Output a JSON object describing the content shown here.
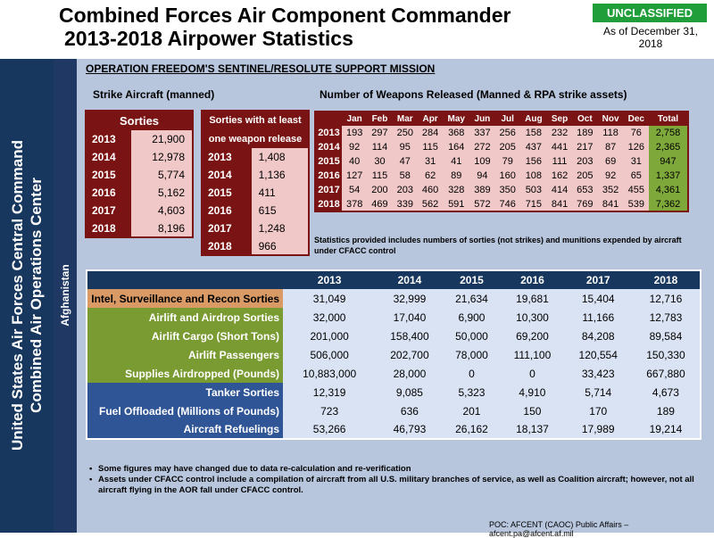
{
  "header": {
    "title_line1": "Combined Forces Air Component Commander",
    "title_line2": "2013-2018 Airpower Statistics",
    "classification": "UNCLASSIFIED",
    "as_of": "As of December 31, 2018"
  },
  "sidebar": {
    "org_line1": "United States Air Forces Central Command",
    "org_line2": "Combined Air Operations Center",
    "country": "Afghanistan"
  },
  "mission": "OPERATION FREEDOM'S SENTINEL/RESOLUTE SUPPORT MISSION",
  "strike": {
    "heading": "Strike Aircraft (manned)",
    "sorties_header": "Sorties",
    "release_header_1": "Sorties with at least",
    "release_header_2": "one weapon release",
    "rows": [
      {
        "year": "2013",
        "sorties": "21,900",
        "release": "1,408"
      },
      {
        "year": "2014",
        "sorties": "12,978",
        "release": "1,136"
      },
      {
        "year": "2015",
        "sorties": "5,774",
        "release": "411"
      },
      {
        "year": "2016",
        "sorties": "5,162",
        "release": "615"
      },
      {
        "year": "2017",
        "sorties": "4,603",
        "release": "1,248"
      },
      {
        "year": "2018",
        "sorties": "8,196",
        "release": "966"
      }
    ]
  },
  "weapons": {
    "heading": "Number of Weapons Released (Manned & RPA strike assets)",
    "months": [
      "Jan",
      "Feb",
      "Mar",
      "Apr",
      "May",
      "Jun",
      "Jul",
      "Aug",
      "Sep",
      "Oct",
      "Nov",
      "Dec",
      "Total"
    ],
    "rows": [
      {
        "year": "2013",
        "vals": [
          "193",
          "297",
          "250",
          "284",
          "368",
          "337",
          "256",
          "158",
          "232",
          "189",
          "118",
          "76",
          "2,758"
        ]
      },
      {
        "year": "2014",
        "vals": [
          "92",
          "114",
          "95",
          "115",
          "164",
          "272",
          "205",
          "437",
          "441",
          "217",
          "87",
          "126",
          "2,365"
        ]
      },
      {
        "year": "2015",
        "vals": [
          "40",
          "30",
          "47",
          "31",
          "41",
          "109",
          "79",
          "156",
          "111",
          "203",
          "69",
          "31",
          "947"
        ]
      },
      {
        "year": "2016",
        "vals": [
          "127",
          "115",
          "58",
          "62",
          "89",
          "94",
          "160",
          "108",
          "162",
          "205",
          "92",
          "65",
          "1,337"
        ]
      },
      {
        "year": "2017",
        "vals": [
          "54",
          "200",
          "203",
          "460",
          "328",
          "389",
          "350",
          "503",
          "414",
          "653",
          "352",
          "455",
          "4,361"
        ]
      },
      {
        "year": "2018",
        "vals": [
          "378",
          "469",
          "339",
          "562",
          "591",
          "572",
          "746",
          "715",
          "841",
          "769",
          "841",
          "539",
          "7,362"
        ]
      }
    ],
    "note": "Statistics provided includes numbers of sorties (not strikes) and munitions expended by aircraft under CFACC control"
  },
  "summary": {
    "years": [
      "2013",
      "2014",
      "2015",
      "2016",
      "2017",
      "2018"
    ],
    "rows": [
      {
        "label": "Intel, Surveillance and Recon Sorties",
        "vals": [
          "31,049",
          "32,999",
          "21,634",
          "19,681",
          "15,404",
          "12,716"
        ]
      },
      {
        "label": "Airlift and Airdrop Sorties",
        "vals": [
          "32,000",
          "17,040",
          "6,900",
          "10,300",
          "11,166",
          "12,783"
        ]
      },
      {
        "label": "Airlift Cargo (Short Tons)",
        "vals": [
          "201,000",
          "158,400",
          "50,000",
          "69,200",
          "84,208",
          "89,584"
        ]
      },
      {
        "label": "Airlift Passengers",
        "vals": [
          "506,000",
          "202,700",
          "78,000",
          "111,100",
          "120,554",
          "150,330"
        ]
      },
      {
        "label": "Supplies Airdropped (Pounds)",
        "vals": [
          "10,883,000",
          "28,000",
          "0",
          "0",
          "33,423",
          "667,880"
        ]
      },
      {
        "label": "Tanker Sorties",
        "vals": [
          "12,319",
          "9,085",
          "5,323",
          "4,910",
          "5,714",
          "4,673"
        ]
      },
      {
        "label": "Fuel Offloaded (Millions of Pounds)",
        "vals": [
          "723",
          "636",
          "201",
          "150",
          "170",
          "189"
        ]
      },
      {
        "label": "Aircraft Refuelings",
        "vals": [
          "53,266",
          "46,793",
          "26,162",
          "18,137",
          "17,989",
          "19,214"
        ]
      }
    ]
  },
  "footnotes": [
    "Some figures may have changed due to data re-calculation and re-verification",
    "Assets under CFACC control include a compilation of aircraft from all U.S.  military branches of service, as well as Coalition aircraft; however, not all aircraft flying in the AOR fall under CFACC control."
  ],
  "poc": "POC:  AFCENT (CAOC) Public Affairs – afcent.pa@afcent.af.mil"
}
